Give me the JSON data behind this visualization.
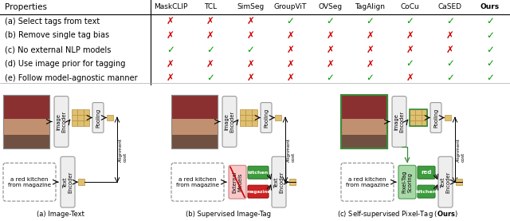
{
  "table": {
    "properties": [
      "(a) Select tags from text",
      "(b) Remove single tag bias",
      "(c) No external NLP models",
      "(d) Use image prior for tagging",
      "(e) Follow model-agnostic manner"
    ],
    "methods": [
      "MaskCLIP",
      "TCL",
      "SimSeg",
      "GroupViT",
      "OVSeg",
      "TagAlign",
      "CoCu",
      "CaSED",
      "Ours"
    ],
    "checks": [
      [
        false,
        false,
        false,
        true,
        true,
        true,
        true,
        true,
        true
      ],
      [
        false,
        false,
        false,
        false,
        false,
        false,
        false,
        false,
        true
      ],
      [
        true,
        true,
        true,
        false,
        false,
        false,
        false,
        false,
        true
      ],
      [
        false,
        false,
        false,
        false,
        false,
        false,
        true,
        true,
        true
      ],
      [
        false,
        true,
        false,
        false,
        true,
        true,
        false,
        true,
        true
      ]
    ]
  },
  "colors": {
    "check_green": "#009900",
    "cross_red": "#cc0000",
    "box_bg": "#eeeeee",
    "box_border": "#999999",
    "pooling_color": "#dfc070",
    "pooling_border": "#b89040",
    "external_pink": "#f8c8c8",
    "external_pink_border": "#d08080",
    "pixel_tag_green": "#a8d8a8",
    "pixel_tag_green_border": "#4a9a4a",
    "tag_kitchen_green": "#3d9c3d",
    "tag_magazine_red": "#cc2222",
    "tag_red_green": "#3d9c3d",
    "tag_kitchen2_green": "#3d9c3d",
    "green_arrow": "#3a8a3a",
    "separator_color": "#888888",
    "kitchen_top": "#8B3030",
    "kitchen_mid": "#b07050",
    "kitchen_bot": "#705040"
  }
}
